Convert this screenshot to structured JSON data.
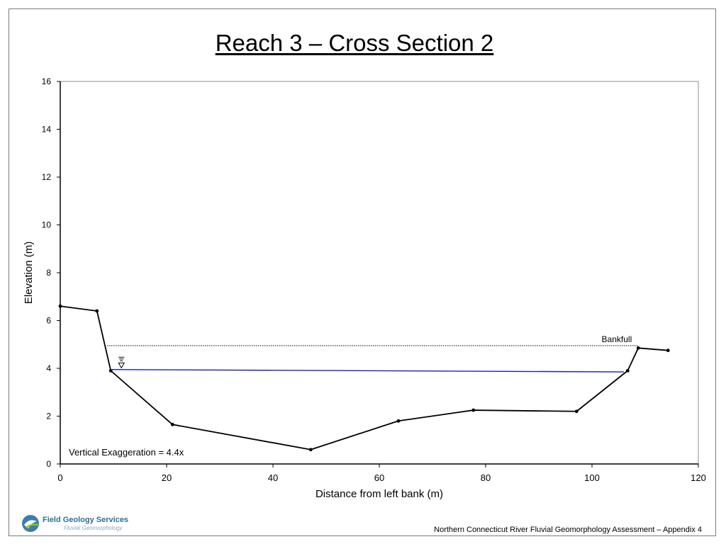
{
  "slide": {
    "footer": "Northern Connecticut River Fluvial Geomorphology Assessment – Appendix 4",
    "logo_name": "Field Geology Services",
    "logo_sub": "Fluvial Geomorphology",
    "colors": {
      "profile": "#000000",
      "water": "#1f1fb4",
      "bankfull": "#000000",
      "frame": "#7a7a7a"
    }
  },
  "chart_data": {
    "type": "line",
    "title": "Reach 3 – Cross Section 2",
    "xlabel": "Distance from left bank (m)",
    "ylabel": "Elevation (m)",
    "xlim": [
      0,
      120
    ],
    "ylim": [
      0,
      16
    ],
    "xticks": [
      0,
      20,
      40,
      60,
      80,
      100,
      120
    ],
    "yticks": [
      0,
      2,
      4,
      6,
      8,
      10,
      12,
      14,
      16
    ],
    "grid": false,
    "series": [
      {
        "role": "channel-profile",
        "style": "solid-black-with-markers",
        "points": [
          [
            0,
            6.6
          ],
          [
            6.9,
            6.4
          ],
          [
            9.5,
            3.9
          ],
          [
            21.1,
            1.65
          ],
          [
            47.1,
            0.6
          ],
          [
            63.6,
            1.8
          ],
          [
            77.7,
            2.25
          ],
          [
            97.1,
            2.2
          ],
          [
            106.7,
            3.9
          ],
          [
            108.7,
            4.85
          ],
          [
            114.3,
            4.75
          ]
        ]
      },
      {
        "role": "water-surface",
        "style": "solid-blue",
        "points": [
          [
            9.5,
            3.95
          ],
          [
            106.0,
            3.85
          ]
        ]
      },
      {
        "role": "bankfull",
        "label": "Bankfull",
        "style": "dotted-black",
        "points": [
          [
            8.8,
            4.95
          ],
          [
            108.7,
            4.95
          ]
        ]
      }
    ],
    "annotations": [
      {
        "text": "Vertical Exaggeration = 4.4x",
        "position": "bottom-left"
      }
    ],
    "water_symbol": {
      "x": 11.5,
      "y": 4.05
    }
  }
}
